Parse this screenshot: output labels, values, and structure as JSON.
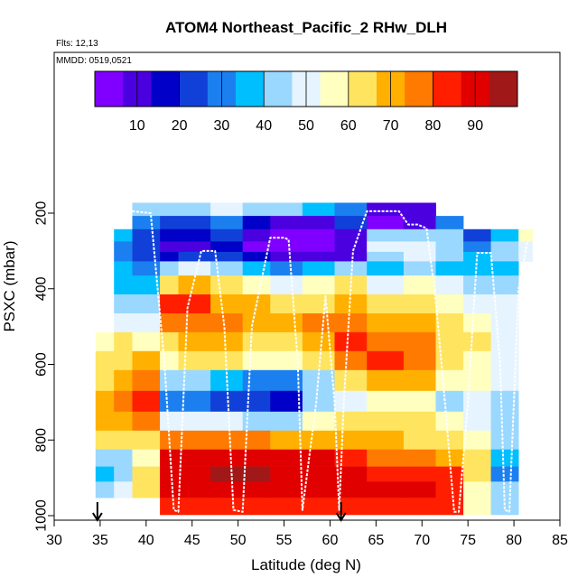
{
  "chart_data": {
    "type": "heatmap",
    "title": "ATOM4 Northeast_Pacific_2 RHw_DLH",
    "annotations": {
      "flights": "Flts: 12,13",
      "dates": "MMDD: 0519,0521"
    },
    "xlabel": "Latitude (deg N)",
    "ylabel": "PSXC (mbar)",
    "xlim": [
      30,
      85
    ],
    "ylim": [
      1000,
      100
    ],
    "y_reversed": true,
    "x_ticks": [
      "30",
      "35",
      "40",
      "45",
      "50",
      "55",
      "60",
      "65",
      "70",
      "75",
      "80",
      "85"
    ],
    "y_ticks": [
      "200",
      "400",
      "600",
      "800",
      "1000"
    ],
    "colorbar": {
      "ticks": [
        "10",
        "20",
        "30",
        "40",
        "50",
        "60",
        "70",
        "80",
        "90"
      ],
      "range": [
        0,
        100
      ],
      "colors": [
        "#7f00ff",
        "#4b00e0",
        "#0000c8",
        "#1040d8",
        "#1c7ff0",
        "#00bfff",
        "#9ad8ff",
        "#e6f4ff",
        "#ffffc0",
        "#ffe460",
        "#ffb000",
        "#ff7a00",
        "#ff1e00",
        "#e00000",
        "#a01818"
      ]
    },
    "markers": [
      {
        "label": "arrow",
        "x": 34.7
      },
      {
        "label": "arrow",
        "x": 61.2
      }
    ],
    "series": [
      {
        "pressure_bins": [
          190,
          225,
          260,
          290,
          315,
          340,
          390,
          440,
          490,
          540,
          590,
          640,
          700,
          750,
          800,
          850,
          890,
          930,
          975
        ],
        "columns": [
          {
            "x": [
              34.5,
              36.5
            ],
            "rh": [
              null,
              null,
              null,
              null,
              null,
              null,
              null,
              null,
              null,
              55,
              62,
              66,
              70,
              72,
              60,
              40,
              35,
              45,
              null
            ]
          },
          {
            "x": [
              36.5,
              38.5
            ],
            "rh": [
              null,
              null,
              35,
              30,
              28,
              34,
              38,
              45,
              50,
              60,
              65,
              72,
              76,
              72,
              62,
              40,
              45,
              52,
              null
            ]
          },
          {
            "x": [
              38.5,
              41.5
            ],
            "rh": [
              45,
              30,
              22,
              20,
              25,
              30,
              35,
              40,
              48,
              58,
              68,
              74,
              80,
              75,
              65,
              55,
              60,
              62,
              null
            ]
          },
          {
            "x": [
              41.5,
              43.5
            ],
            "rh": [
              40,
              20,
              15,
              12,
              18,
              40,
              65,
              82,
              75,
              65,
              55,
              40,
              30,
              50,
              75,
              90,
              92,
              88,
              85
            ]
          },
          {
            "x": [
              43.5,
              47
            ],
            "rh": [
              45,
              25,
              18,
              12,
              20,
              50,
              70,
              80,
              78,
              70,
              62,
              40,
              30,
              52,
              78,
              92,
              93,
              90,
              86
            ]
          },
          {
            "x": [
              47,
              50.5
            ],
            "rh": [
              48,
              30,
              20,
              14,
              22,
              45,
              62,
              72,
              75,
              68,
              60,
              35,
              25,
              48,
              78,
              93,
              94,
              90,
              86
            ]
          },
          {
            "x": [
              50.5,
              53.5
            ],
            "rh": [
              45,
              15,
              8,
              6,
              14,
              35,
              55,
              70,
              72,
              60,
              55,
              30,
              20,
              45,
              75,
              92,
              94,
              90,
              86
            ]
          },
          {
            "x": [
              53.5,
              57
            ],
            "rh": [
              40,
              12,
              5,
              4,
              10,
              30,
              50,
              62,
              68,
              60,
              55,
              30,
              18,
              42,
              72,
              90,
              93,
              90,
              86
            ]
          },
          {
            "x": [
              57,
              60.5
            ],
            "rh": [
              35,
              12,
              6,
              5,
              10,
              35,
              55,
              65,
              75,
              70,
              62,
              45,
              40,
              55,
              72,
              88,
              92,
              90,
              85
            ]
          },
          {
            "x": [
              60.5,
              64
            ],
            "rh": [
              30,
              20,
              10,
              8,
              12,
              40,
              60,
              72,
              78,
              80,
              75,
              60,
              48,
              60,
              72,
              85,
              90,
              90,
              85
            ]
          },
          {
            "x": [
              64,
              68
            ],
            "rh": [
              8,
              5,
              40,
              50,
              45,
              38,
              52,
              65,
              70,
              78,
              80,
              70,
              55,
              62,
              68,
              78,
              86,
              88,
              85
            ]
          },
          {
            "x": [
              68,
              71.5
            ],
            "rh": [
              10,
              8,
              45,
              52,
              48,
              40,
              55,
              62,
              68,
              75,
              78,
              72,
              58,
              60,
              66,
              75,
              84,
              88,
              84
            ]
          },
          {
            "x": [
              71.5,
              74.5
            ],
            "rh": [
              null,
              30,
              42,
              45,
              40,
              38,
              50,
              55,
              62,
              66,
              65,
              58,
              45,
              55,
              62,
              72,
              80,
              86,
              82
            ]
          },
          {
            "x": [
              74.5,
              77.5
            ],
            "rh": [
              null,
              null,
              25,
              30,
              35,
              38,
              45,
              50,
              58,
              60,
              58,
              55,
              48,
              52,
              55,
              60,
              62,
              58,
              55
            ]
          },
          {
            "x": [
              77.5,
              80.5
            ],
            "rh": [
              null,
              null,
              38,
              40,
              42,
              38,
              45,
              48,
              50,
              52,
              50,
              48,
              40,
              42,
              45,
              38,
              30,
              40,
              45
            ]
          },
          {
            "x": [
              80.5,
              82
            ],
            "rh": [
              null,
              null,
              55,
              50,
              48,
              null,
              null,
              null,
              null,
              null,
              null,
              null,
              null,
              null,
              null,
              null,
              null,
              null,
              null
            ]
          }
        ]
      },
      {
        "name": "flight track",
        "x": [
          38.5,
          40.5,
          42,
          43,
          43.5,
          44.5,
          46,
          47.5,
          48.5,
          49.5,
          50.5,
          51.5,
          53.5,
          55,
          55.5,
          56.5,
          57,
          58.5,
          59.5,
          60.5,
          61,
          61.5,
          62.5,
          64,
          66,
          67.5,
          68.5,
          69.5,
          70.5,
          71.5,
          72.5,
          73.5,
          74,
          75,
          76,
          77.5,
          78.5,
          79,
          79.5,
          80.5,
          81.5
        ],
        "y": [
          195,
          200,
          600,
          985,
          990,
          450,
          300,
          300,
          500,
          985,
          990,
          500,
          265,
          265,
          270,
          600,
          985,
          700,
          420,
          700,
          985,
          700,
          300,
          195,
          195,
          195,
          230,
          230,
          240,
          430,
          700,
          990,
          990,
          700,
          305,
          305,
          600,
          985,
          990,
          400,
          270
        ]
      }
    ]
  }
}
